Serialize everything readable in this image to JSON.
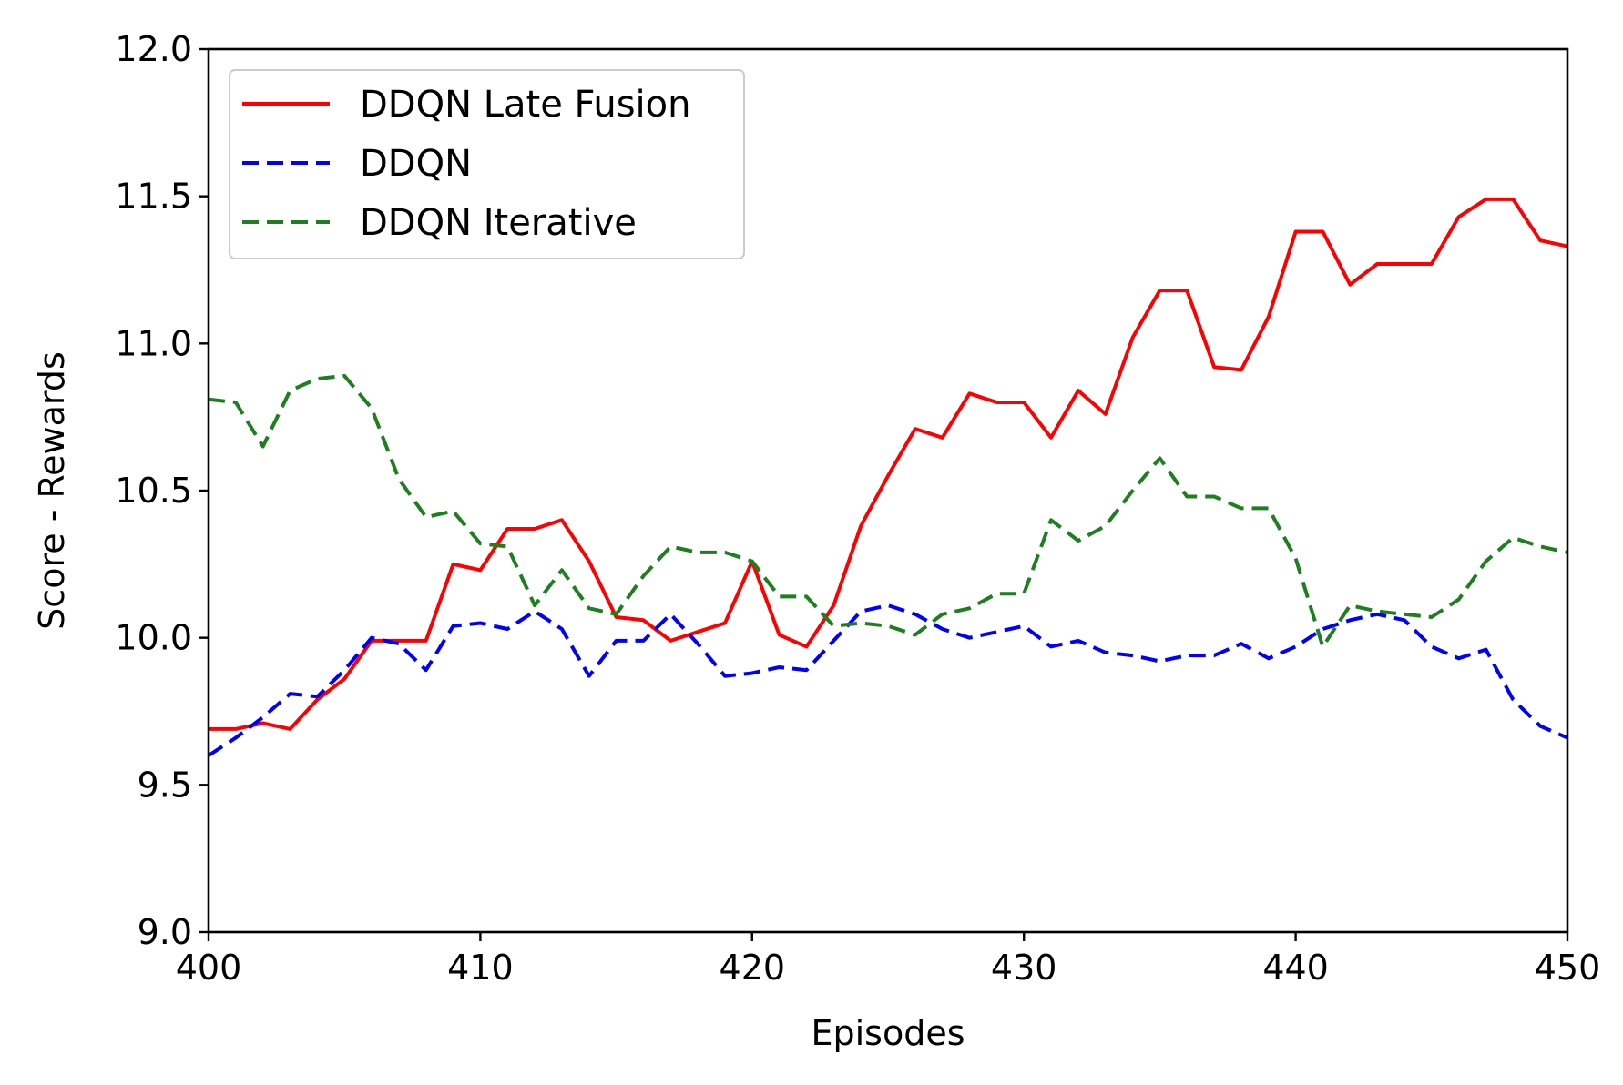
{
  "chart_data": {
    "type": "line",
    "title": "",
    "xlabel": "Episodes",
    "ylabel": "Score - Rewards",
    "xlim": [
      400,
      450
    ],
    "ylim": [
      9.0,
      12.0
    ],
    "xticks": [
      400,
      410,
      420,
      430,
      440,
      450
    ],
    "xtick_labels": [
      "400",
      "410",
      "420",
      "430",
      "440",
      "450"
    ],
    "yticks": [
      9.0,
      9.5,
      10.0,
      10.5,
      11.0,
      11.5,
      12.0
    ],
    "ytick_labels": [
      "9.0",
      "9.5",
      "10.0",
      "10.5",
      "11.0",
      "11.5",
      "12.0"
    ],
    "grid": false,
    "legend_position": "top-left",
    "x": [
      400,
      401,
      402,
      403,
      404,
      405,
      406,
      407,
      408,
      409,
      410,
      411,
      412,
      413,
      414,
      415,
      416,
      417,
      418,
      419,
      420,
      421,
      422,
      423,
      424,
      425,
      426,
      427,
      428,
      429,
      430,
      431,
      432,
      433,
      434,
      435,
      436,
      437,
      438,
      439,
      440,
      441,
      442,
      443,
      444,
      445,
      446,
      447,
      448,
      449,
      450
    ],
    "series": [
      {
        "name": "DDQN Late Fusion",
        "color": "#ff0000",
        "linestyle": "solid",
        "values": [
          9.69,
          9.69,
          9.71,
          9.69,
          9.79,
          9.86,
          9.99,
          9.99,
          9.99,
          10.25,
          10.23,
          10.37,
          10.37,
          10.4,
          10.26,
          10.07,
          10.06,
          9.99,
          10.02,
          10.05,
          10.26,
          10.01,
          9.97,
          10.11,
          10.38,
          10.55,
          10.71,
          10.68,
          10.83,
          10.8,
          10.8,
          10.68,
          10.84,
          10.76,
          11.02,
          11.18,
          11.18,
          10.92,
          10.91,
          11.09,
          11.38,
          11.38,
          11.2,
          11.27,
          11.27,
          11.27,
          11.43,
          11.49,
          11.49,
          11.35,
          11.33
        ]
      },
      {
        "name": "DDQN",
        "color": "#0000ff",
        "linestyle": "dashed",
        "values": [
          9.6,
          9.66,
          9.73,
          9.81,
          9.8,
          9.89,
          10.0,
          9.98,
          9.89,
          10.04,
          10.05,
          10.03,
          10.09,
          10.03,
          9.87,
          9.99,
          9.99,
          10.08,
          9.98,
          9.87,
          9.88,
          9.9,
          9.89,
          9.99,
          10.09,
          10.11,
          10.08,
          10.03,
          10.0,
          10.02,
          10.04,
          9.97,
          9.99,
          9.95,
          9.94,
          9.92,
          9.94,
          9.94,
          9.98,
          9.93,
          9.97,
          10.03,
          10.06,
          10.08,
          10.06,
          9.97,
          9.93,
          9.96,
          9.79,
          9.7,
          9.66
        ]
      },
      {
        "name": "DDQN Iterative",
        "color": "#1e7f1e",
        "linestyle": "dashed",
        "values": [
          10.81,
          10.8,
          10.65,
          10.84,
          10.88,
          10.89,
          10.78,
          10.54,
          10.41,
          10.43,
          10.32,
          10.31,
          10.11,
          10.23,
          10.1,
          10.08,
          10.21,
          10.31,
          10.29,
          10.29,
          10.26,
          10.14,
          10.14,
          10.04,
          10.05,
          10.04,
          10.01,
          10.08,
          10.1,
          10.15,
          10.15,
          10.4,
          10.33,
          10.38,
          10.5,
          10.61,
          10.48,
          10.48,
          10.44,
          10.44,
          10.27,
          9.97,
          10.11,
          10.09,
          10.08,
          10.07,
          10.13,
          10.26,
          10.34,
          10.31,
          10.29
        ]
      }
    ]
  }
}
